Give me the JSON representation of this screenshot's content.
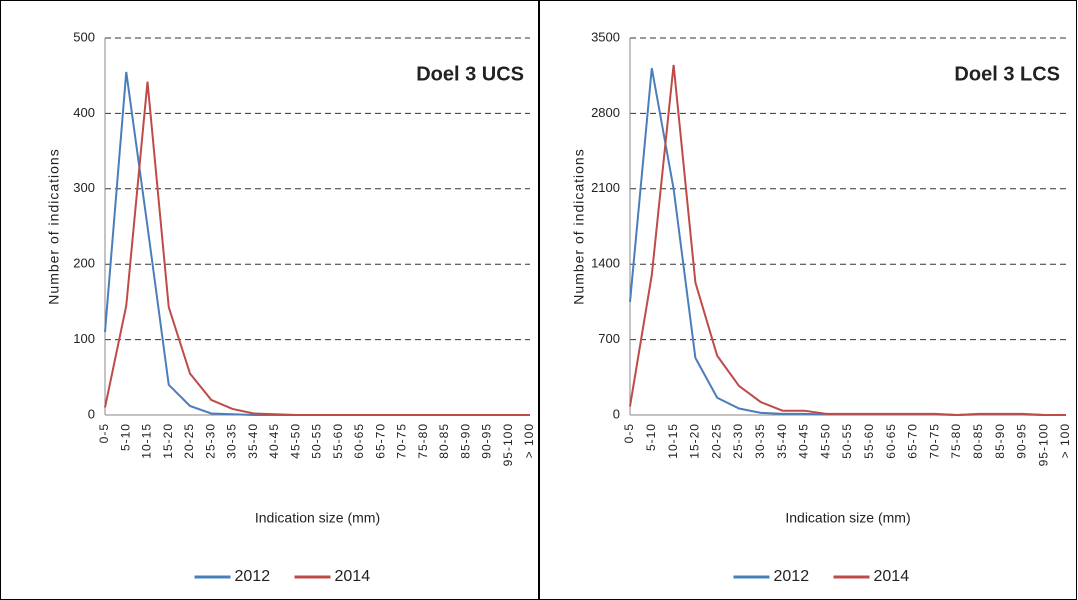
{
  "chart_data": [
    {
      "type": "line",
      "title": "Doel 3 UCS",
      "x_label": "Indication size (mm)",
      "y_label": "Number of indications",
      "categories": [
        "0-5",
        "5-10",
        "10-15",
        "15-20",
        "20-25",
        "25-30",
        "30-35",
        "35-40",
        "40-45",
        "45-50",
        "50-55",
        "55-60",
        "60-65",
        "65-70",
        "70-75",
        "75-80",
        "80-85",
        "85-90",
        "90-95",
        "95-100",
        "> 100"
      ],
      "series": [
        {
          "name": "2012",
          "color": "#4a7ebb",
          "values": [
            110,
            455,
            250,
            40,
            12,
            2,
            1,
            0,
            0,
            0,
            0,
            0,
            0,
            0,
            0,
            0,
            0,
            0,
            0,
            0,
            0
          ]
        },
        {
          "name": "2014",
          "color": "#be4b48",
          "values": [
            10,
            145,
            442,
            143,
            55,
            20,
            8,
            2,
            1,
            0,
            0,
            0,
            0,
            0,
            0,
            0,
            0,
            0,
            0,
            0,
            0
          ]
        }
      ],
      "ylim": [
        0,
        500
      ],
      "yticks": [
        0,
        100,
        200,
        300,
        400,
        500
      ],
      "grid": true,
      "legend": "bottom"
    },
    {
      "type": "line",
      "title": "Doel 3 LCS",
      "x_label": "Indication size (mm)",
      "y_label": "Number of indications",
      "categories": [
        "0-5",
        "5-10",
        "10-15",
        "15-20",
        "20-25",
        "25-30",
        "30-35",
        "35-40",
        "40-45",
        "45-50",
        "50-55",
        "55-60",
        "60-65",
        "65-70",
        "70-75",
        "75-80",
        "80-85",
        "85-90",
        "90-95",
        "95-100",
        "> 100"
      ],
      "series": [
        {
          "name": "2012",
          "color": "#4a7ebb",
          "values": [
            1050,
            3220,
            2100,
            530,
            160,
            60,
            20,
            10,
            10,
            5,
            5,
            5,
            5,
            5,
            5,
            0,
            5,
            5,
            5,
            0,
            0
          ]
        },
        {
          "name": "2014",
          "color": "#be4b48",
          "values": [
            80,
            1300,
            3250,
            1230,
            550,
            270,
            120,
            40,
            40,
            10,
            10,
            10,
            10,
            10,
            10,
            0,
            10,
            10,
            10,
            0,
            0
          ]
        }
      ],
      "ylim": [
        0,
        3500
      ],
      "yticks": [
        0,
        700,
        1400,
        2100,
        2800,
        3500
      ],
      "grid": true,
      "legend": "bottom"
    }
  ]
}
